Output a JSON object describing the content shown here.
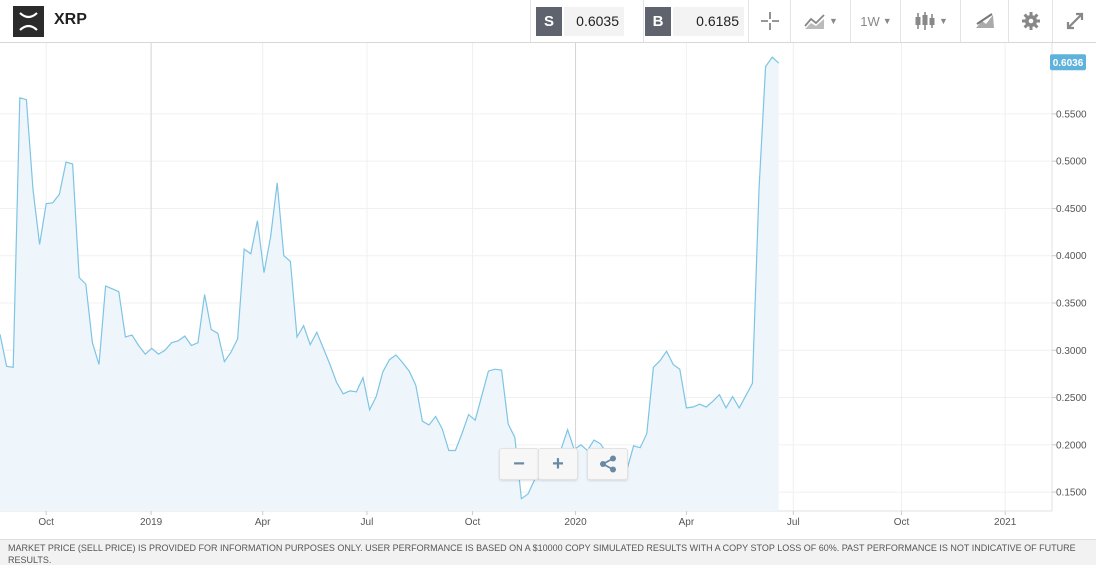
{
  "header": {
    "symbol": "XRP",
    "sell_badge": "S",
    "sell_price": "0.6035",
    "buy_badge": "B",
    "buy_price": "0.6185",
    "interval": "1W",
    "icons": [
      "crosshair-icon",
      "line-chart-icon",
      "candlestick-icon",
      "draw-icon",
      "gear-icon",
      "expand-icon"
    ]
  },
  "zoom": {
    "minus": "−",
    "plus": "+"
  },
  "footer": {
    "disclaimer": "MARKET PRICE (SELL PRICE) IS PROVIDED FOR INFORMATION PURPOSES ONLY. USER PERFORMANCE IS BASED ON A $10000 COPY SIMULATED RESULTS WITH A COPY STOP LOSS OF 60%. PAST PERFORMANCE IS NOT INDICATIVE OF FUTURE RESULTS."
  },
  "colors": {
    "line": "#7ec4e4",
    "fill": "#eef6fc",
    "current_badge": "#5fb2dc"
  },
  "chart_data": {
    "type": "area",
    "current_value": "0.6036",
    "ylim": [
      0.13,
      0.625
    ],
    "y_ticks": [
      0.15,
      0.2,
      0.25,
      0.3,
      0.35,
      0.4,
      0.45,
      0.5,
      0.55
    ],
    "y_tick_labels": [
      "0.1500",
      "0.2000",
      "0.2500",
      "0.3000",
      "0.3500",
      "0.4000",
      "0.4500",
      "0.5000",
      "0.5500"
    ],
    "x_tick_labels": [
      "Oct",
      "2019",
      "Apr",
      "Jul",
      "Oct",
      "2020",
      "Apr",
      "Jul",
      "Oct",
      "2021"
    ],
    "x_tick_index": [
      7.0,
      22.9,
      39.8,
      55.6,
      71.6,
      87.2,
      104.0,
      120.2,
      136.6,
      152.3
    ],
    "series": [
      {
        "values": [
          0.317,
          0.283,
          0.282,
          0.567,
          0.565,
          0.47,
          0.412,
          0.455,
          0.456,
          0.465,
          0.499,
          0.497,
          0.377,
          0.37,
          0.308,
          0.285,
          0.368,
          0.365,
          0.362,
          0.314,
          0.316,
          0.305,
          0.296,
          0.302,
          0.296,
          0.3,
          0.308,
          0.31,
          0.315,
          0.305,
          0.308,
          0.359,
          0.322,
          0.318,
          0.288,
          0.298,
          0.312,
          0.407,
          0.402,
          0.437,
          0.382,
          0.42,
          0.477,
          0.4,
          0.394,
          0.314,
          0.326,
          0.306,
          0.319,
          0.302,
          0.285,
          0.266,
          0.254,
          0.257,
          0.256,
          0.271,
          0.237,
          0.251,
          0.277,
          0.29,
          0.295,
          0.287,
          0.278,
          0.263,
          0.225,
          0.221,
          0.23,
          0.217,
          0.194,
          0.194,
          0.212,
          0.232,
          0.226,
          0.252,
          0.278,
          0.28,
          0.279,
          0.222,
          0.208,
          0.143,
          0.148,
          0.163,
          0.177,
          0.192,
          0.189,
          0.195,
          0.216,
          0.195,
          0.2,
          0.194,
          0.205,
          0.201,
          0.19,
          0.183,
          0.175,
          0.174,
          0.199,
          0.197,
          0.212,
          0.282,
          0.289,
          0.299,
          0.285,
          0.28,
          0.239,
          0.24,
          0.243,
          0.24,
          0.246,
          0.253,
          0.239,
          0.251,
          0.239,
          0.252,
          0.265,
          0.47,
          0.6,
          0.61,
          0.6036
        ]
      }
    ]
  }
}
